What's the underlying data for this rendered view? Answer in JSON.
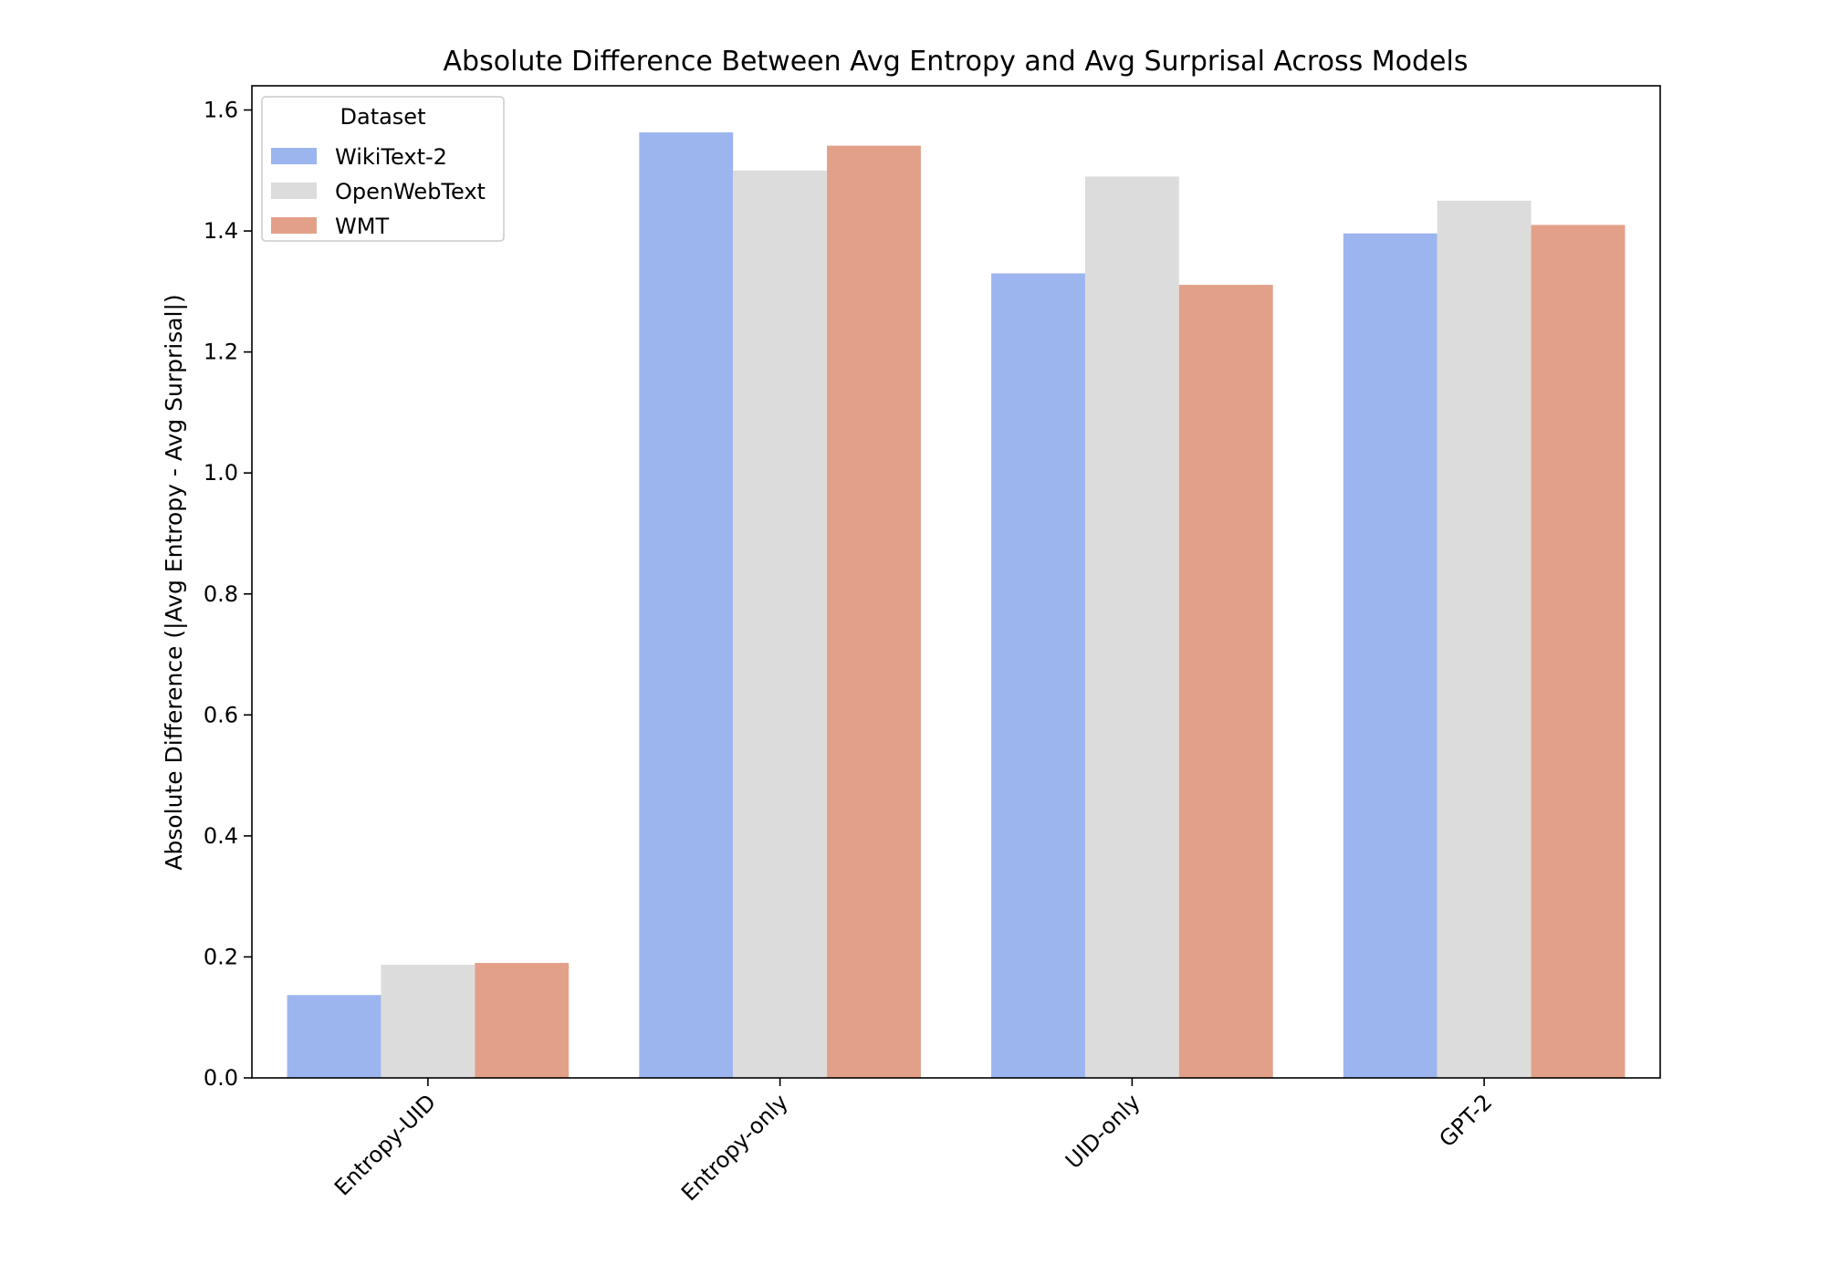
{
  "chart_data": {
    "type": "bar",
    "title": "Absolute Difference Between Avg Entropy and Avg Surprisal Across Models",
    "xlabel": "",
    "ylabel": "Absolute Difference (|Avg Entropy - Avg Surprisal|)",
    "categories": [
      "Entropy-UID",
      "Entropy-only",
      "UID-only",
      "GPT-2"
    ],
    "series": [
      {
        "name": "WikiText-2",
        "color": "#9db5ef",
        "values": [
          0.137,
          1.563,
          1.33,
          1.396
        ]
      },
      {
        "name": "OpenWebText",
        "color": "#dcdcdc",
        "values": [
          0.187,
          1.5,
          1.49,
          1.45
        ]
      },
      {
        "name": "WMT",
        "color": "#e3a089",
        "values": [
          0.19,
          1.541,
          1.311,
          1.41
        ]
      }
    ],
    "ylim": [
      0,
      1.64
    ],
    "yticks": [
      0.0,
      0.2,
      0.4,
      0.6,
      0.8,
      1.0,
      1.2,
      1.4,
      1.6
    ],
    "ytick_labels": [
      "0.0",
      "0.2",
      "0.4",
      "0.6",
      "0.8",
      "1.0",
      "1.2",
      "1.4",
      "1.6"
    ],
    "grid": false,
    "legend": {
      "title": "Dataset",
      "placement": "top-left"
    }
  }
}
